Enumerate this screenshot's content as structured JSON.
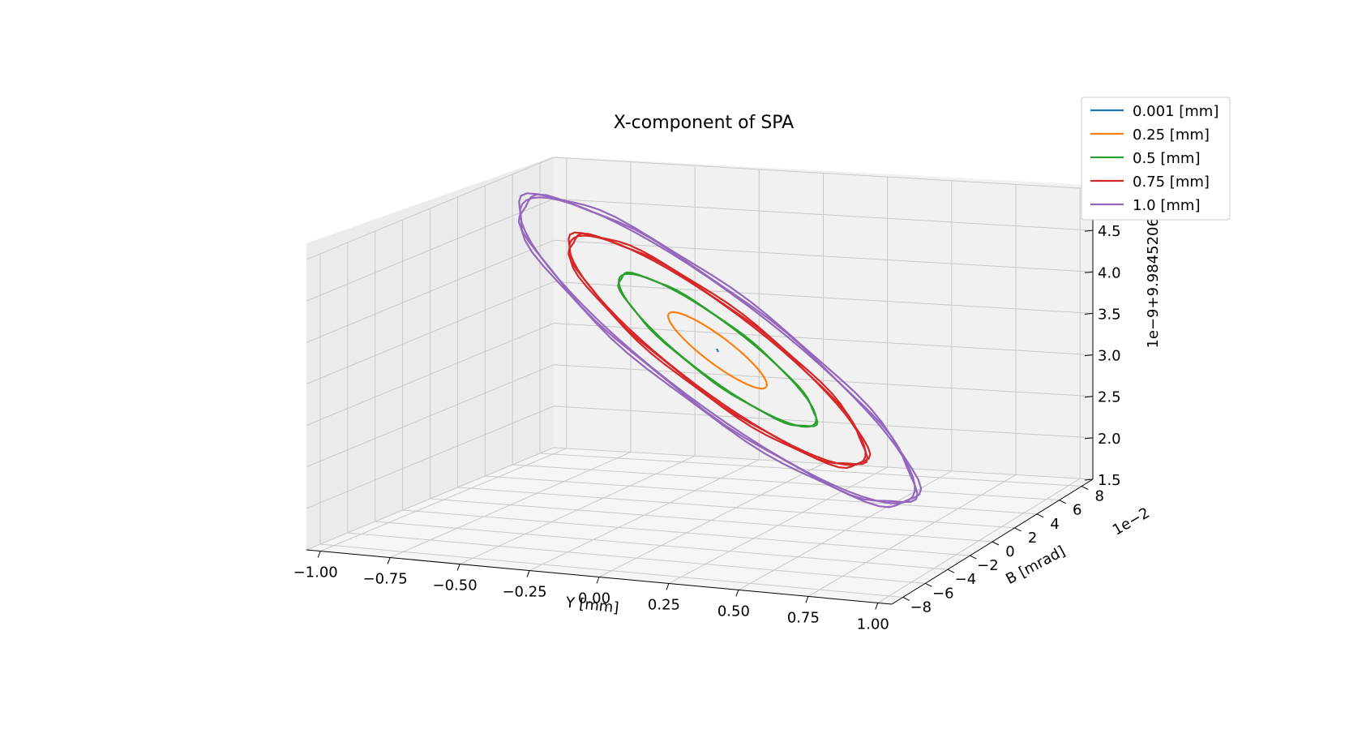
{
  "chart_data": {
    "type": "line",
    "projection": "3d",
    "title": "X-component of SPA",
    "xlabel": "Y [mm]",
    "ylabel": "B [mrad]",
    "zlabel": "1e−9+9.9845206e−1",
    "y_offset_label": "1e−2",
    "x_ticks": [
      "−1.00",
      "−0.75",
      "−0.50",
      "−0.25",
      "0.00",
      "0.25",
      "0.50",
      "0.75",
      "1.00"
    ],
    "y_ticks": [
      "−8",
      "−6",
      "−4",
      "−2",
      "0",
      "2",
      "4",
      "6",
      "8"
    ],
    "z_ticks": [
      "1.5",
      "2.0",
      "2.5",
      "3.0",
      "3.5",
      "4.0",
      "4.5",
      "5.0"
    ],
    "xlim": [
      -1.05,
      1.05
    ],
    "ylim": [
      -0.09,
      0.09
    ],
    "zlim": [
      1.5,
      5.0
    ],
    "grid": true,
    "legend_position": "top-right",
    "series": [
      {
        "name": "0.001 [mm]",
        "color": "#1f77b4",
        "amplitude_mm": 0.001
      },
      {
        "name": "0.25 [mm]",
        "color": "#ff7f0e",
        "amplitude_mm": 0.25
      },
      {
        "name": " 0.5 [mm]",
        "color": "#2ca02c",
        "amplitude_mm": 0.5
      },
      {
        "name": "0.75 [mm]",
        "color": "#d62728",
        "amplitude_mm": 0.75
      },
      {
        "name": "1.0 [mm]",
        "color": "#9467bd",
        "amplitude_mm": 1.0
      }
    ]
  }
}
